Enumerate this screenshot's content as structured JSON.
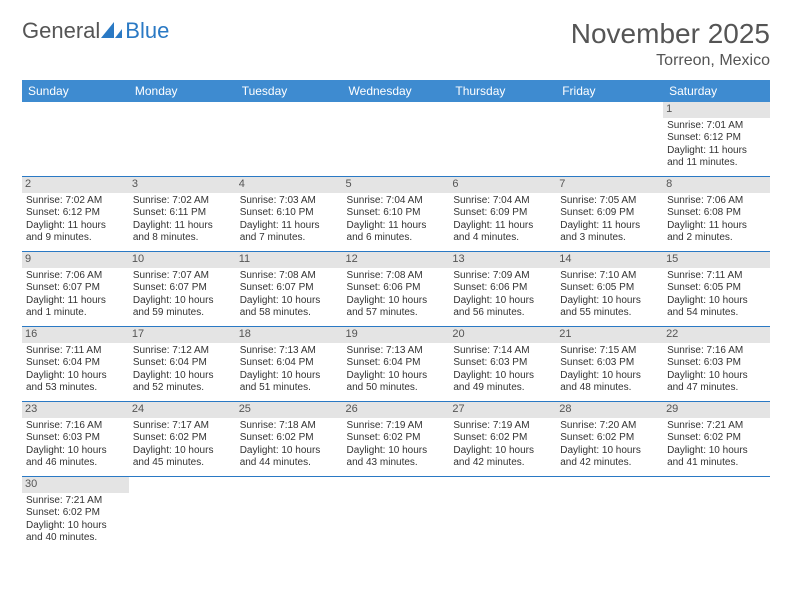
{
  "brand": {
    "part1": "General",
    "part2": "Blue",
    "sail_color": "#2a79c4"
  },
  "title": {
    "month": "November 2025",
    "location": "Torreon, Mexico"
  },
  "colors": {
    "header_bg": "#3e8bd0",
    "header_text": "#ffffff",
    "divider": "#2a79c4",
    "daynum_bg": "#e4e4e4",
    "text": "#333333"
  },
  "weekdays": [
    "Sunday",
    "Monday",
    "Tuesday",
    "Wednesday",
    "Thursday",
    "Friday",
    "Saturday"
  ],
  "weeks": [
    [
      null,
      null,
      null,
      null,
      null,
      null,
      {
        "n": "1",
        "sr": "Sunrise: 7:01 AM",
        "ss": "Sunset: 6:12 PM",
        "dl": "Daylight: 11 hours and 11 minutes."
      }
    ],
    [
      {
        "n": "2",
        "sr": "Sunrise: 7:02 AM",
        "ss": "Sunset: 6:12 PM",
        "dl": "Daylight: 11 hours and 9 minutes."
      },
      {
        "n": "3",
        "sr": "Sunrise: 7:02 AM",
        "ss": "Sunset: 6:11 PM",
        "dl": "Daylight: 11 hours and 8 minutes."
      },
      {
        "n": "4",
        "sr": "Sunrise: 7:03 AM",
        "ss": "Sunset: 6:10 PM",
        "dl": "Daylight: 11 hours and 7 minutes."
      },
      {
        "n": "5",
        "sr": "Sunrise: 7:04 AM",
        "ss": "Sunset: 6:10 PM",
        "dl": "Daylight: 11 hours and 6 minutes."
      },
      {
        "n": "6",
        "sr": "Sunrise: 7:04 AM",
        "ss": "Sunset: 6:09 PM",
        "dl": "Daylight: 11 hours and 4 minutes."
      },
      {
        "n": "7",
        "sr": "Sunrise: 7:05 AM",
        "ss": "Sunset: 6:09 PM",
        "dl": "Daylight: 11 hours and 3 minutes."
      },
      {
        "n": "8",
        "sr": "Sunrise: 7:06 AM",
        "ss": "Sunset: 6:08 PM",
        "dl": "Daylight: 11 hours and 2 minutes."
      }
    ],
    [
      {
        "n": "9",
        "sr": "Sunrise: 7:06 AM",
        "ss": "Sunset: 6:07 PM",
        "dl": "Daylight: 11 hours and 1 minute."
      },
      {
        "n": "10",
        "sr": "Sunrise: 7:07 AM",
        "ss": "Sunset: 6:07 PM",
        "dl": "Daylight: 10 hours and 59 minutes."
      },
      {
        "n": "11",
        "sr": "Sunrise: 7:08 AM",
        "ss": "Sunset: 6:07 PM",
        "dl": "Daylight: 10 hours and 58 minutes."
      },
      {
        "n": "12",
        "sr": "Sunrise: 7:08 AM",
        "ss": "Sunset: 6:06 PM",
        "dl": "Daylight: 10 hours and 57 minutes."
      },
      {
        "n": "13",
        "sr": "Sunrise: 7:09 AM",
        "ss": "Sunset: 6:06 PM",
        "dl": "Daylight: 10 hours and 56 minutes."
      },
      {
        "n": "14",
        "sr": "Sunrise: 7:10 AM",
        "ss": "Sunset: 6:05 PM",
        "dl": "Daylight: 10 hours and 55 minutes."
      },
      {
        "n": "15",
        "sr": "Sunrise: 7:11 AM",
        "ss": "Sunset: 6:05 PM",
        "dl": "Daylight: 10 hours and 54 minutes."
      }
    ],
    [
      {
        "n": "16",
        "sr": "Sunrise: 7:11 AM",
        "ss": "Sunset: 6:04 PM",
        "dl": "Daylight: 10 hours and 53 minutes."
      },
      {
        "n": "17",
        "sr": "Sunrise: 7:12 AM",
        "ss": "Sunset: 6:04 PM",
        "dl": "Daylight: 10 hours and 52 minutes."
      },
      {
        "n": "18",
        "sr": "Sunrise: 7:13 AM",
        "ss": "Sunset: 6:04 PM",
        "dl": "Daylight: 10 hours and 51 minutes."
      },
      {
        "n": "19",
        "sr": "Sunrise: 7:13 AM",
        "ss": "Sunset: 6:04 PM",
        "dl": "Daylight: 10 hours and 50 minutes."
      },
      {
        "n": "20",
        "sr": "Sunrise: 7:14 AM",
        "ss": "Sunset: 6:03 PM",
        "dl": "Daylight: 10 hours and 49 minutes."
      },
      {
        "n": "21",
        "sr": "Sunrise: 7:15 AM",
        "ss": "Sunset: 6:03 PM",
        "dl": "Daylight: 10 hours and 48 minutes."
      },
      {
        "n": "22",
        "sr": "Sunrise: 7:16 AM",
        "ss": "Sunset: 6:03 PM",
        "dl": "Daylight: 10 hours and 47 minutes."
      }
    ],
    [
      {
        "n": "23",
        "sr": "Sunrise: 7:16 AM",
        "ss": "Sunset: 6:03 PM",
        "dl": "Daylight: 10 hours and 46 minutes."
      },
      {
        "n": "24",
        "sr": "Sunrise: 7:17 AM",
        "ss": "Sunset: 6:02 PM",
        "dl": "Daylight: 10 hours and 45 minutes."
      },
      {
        "n": "25",
        "sr": "Sunrise: 7:18 AM",
        "ss": "Sunset: 6:02 PM",
        "dl": "Daylight: 10 hours and 44 minutes."
      },
      {
        "n": "26",
        "sr": "Sunrise: 7:19 AM",
        "ss": "Sunset: 6:02 PM",
        "dl": "Daylight: 10 hours and 43 minutes."
      },
      {
        "n": "27",
        "sr": "Sunrise: 7:19 AM",
        "ss": "Sunset: 6:02 PM",
        "dl": "Daylight: 10 hours and 42 minutes."
      },
      {
        "n": "28",
        "sr": "Sunrise: 7:20 AM",
        "ss": "Sunset: 6:02 PM",
        "dl": "Daylight: 10 hours and 42 minutes."
      },
      {
        "n": "29",
        "sr": "Sunrise: 7:21 AM",
        "ss": "Sunset: 6:02 PM",
        "dl": "Daylight: 10 hours and 41 minutes."
      }
    ],
    [
      {
        "n": "30",
        "sr": "Sunrise: 7:21 AM",
        "ss": "Sunset: 6:02 PM",
        "dl": "Daylight: 10 hours and 40 minutes."
      },
      null,
      null,
      null,
      null,
      null,
      null
    ]
  ]
}
